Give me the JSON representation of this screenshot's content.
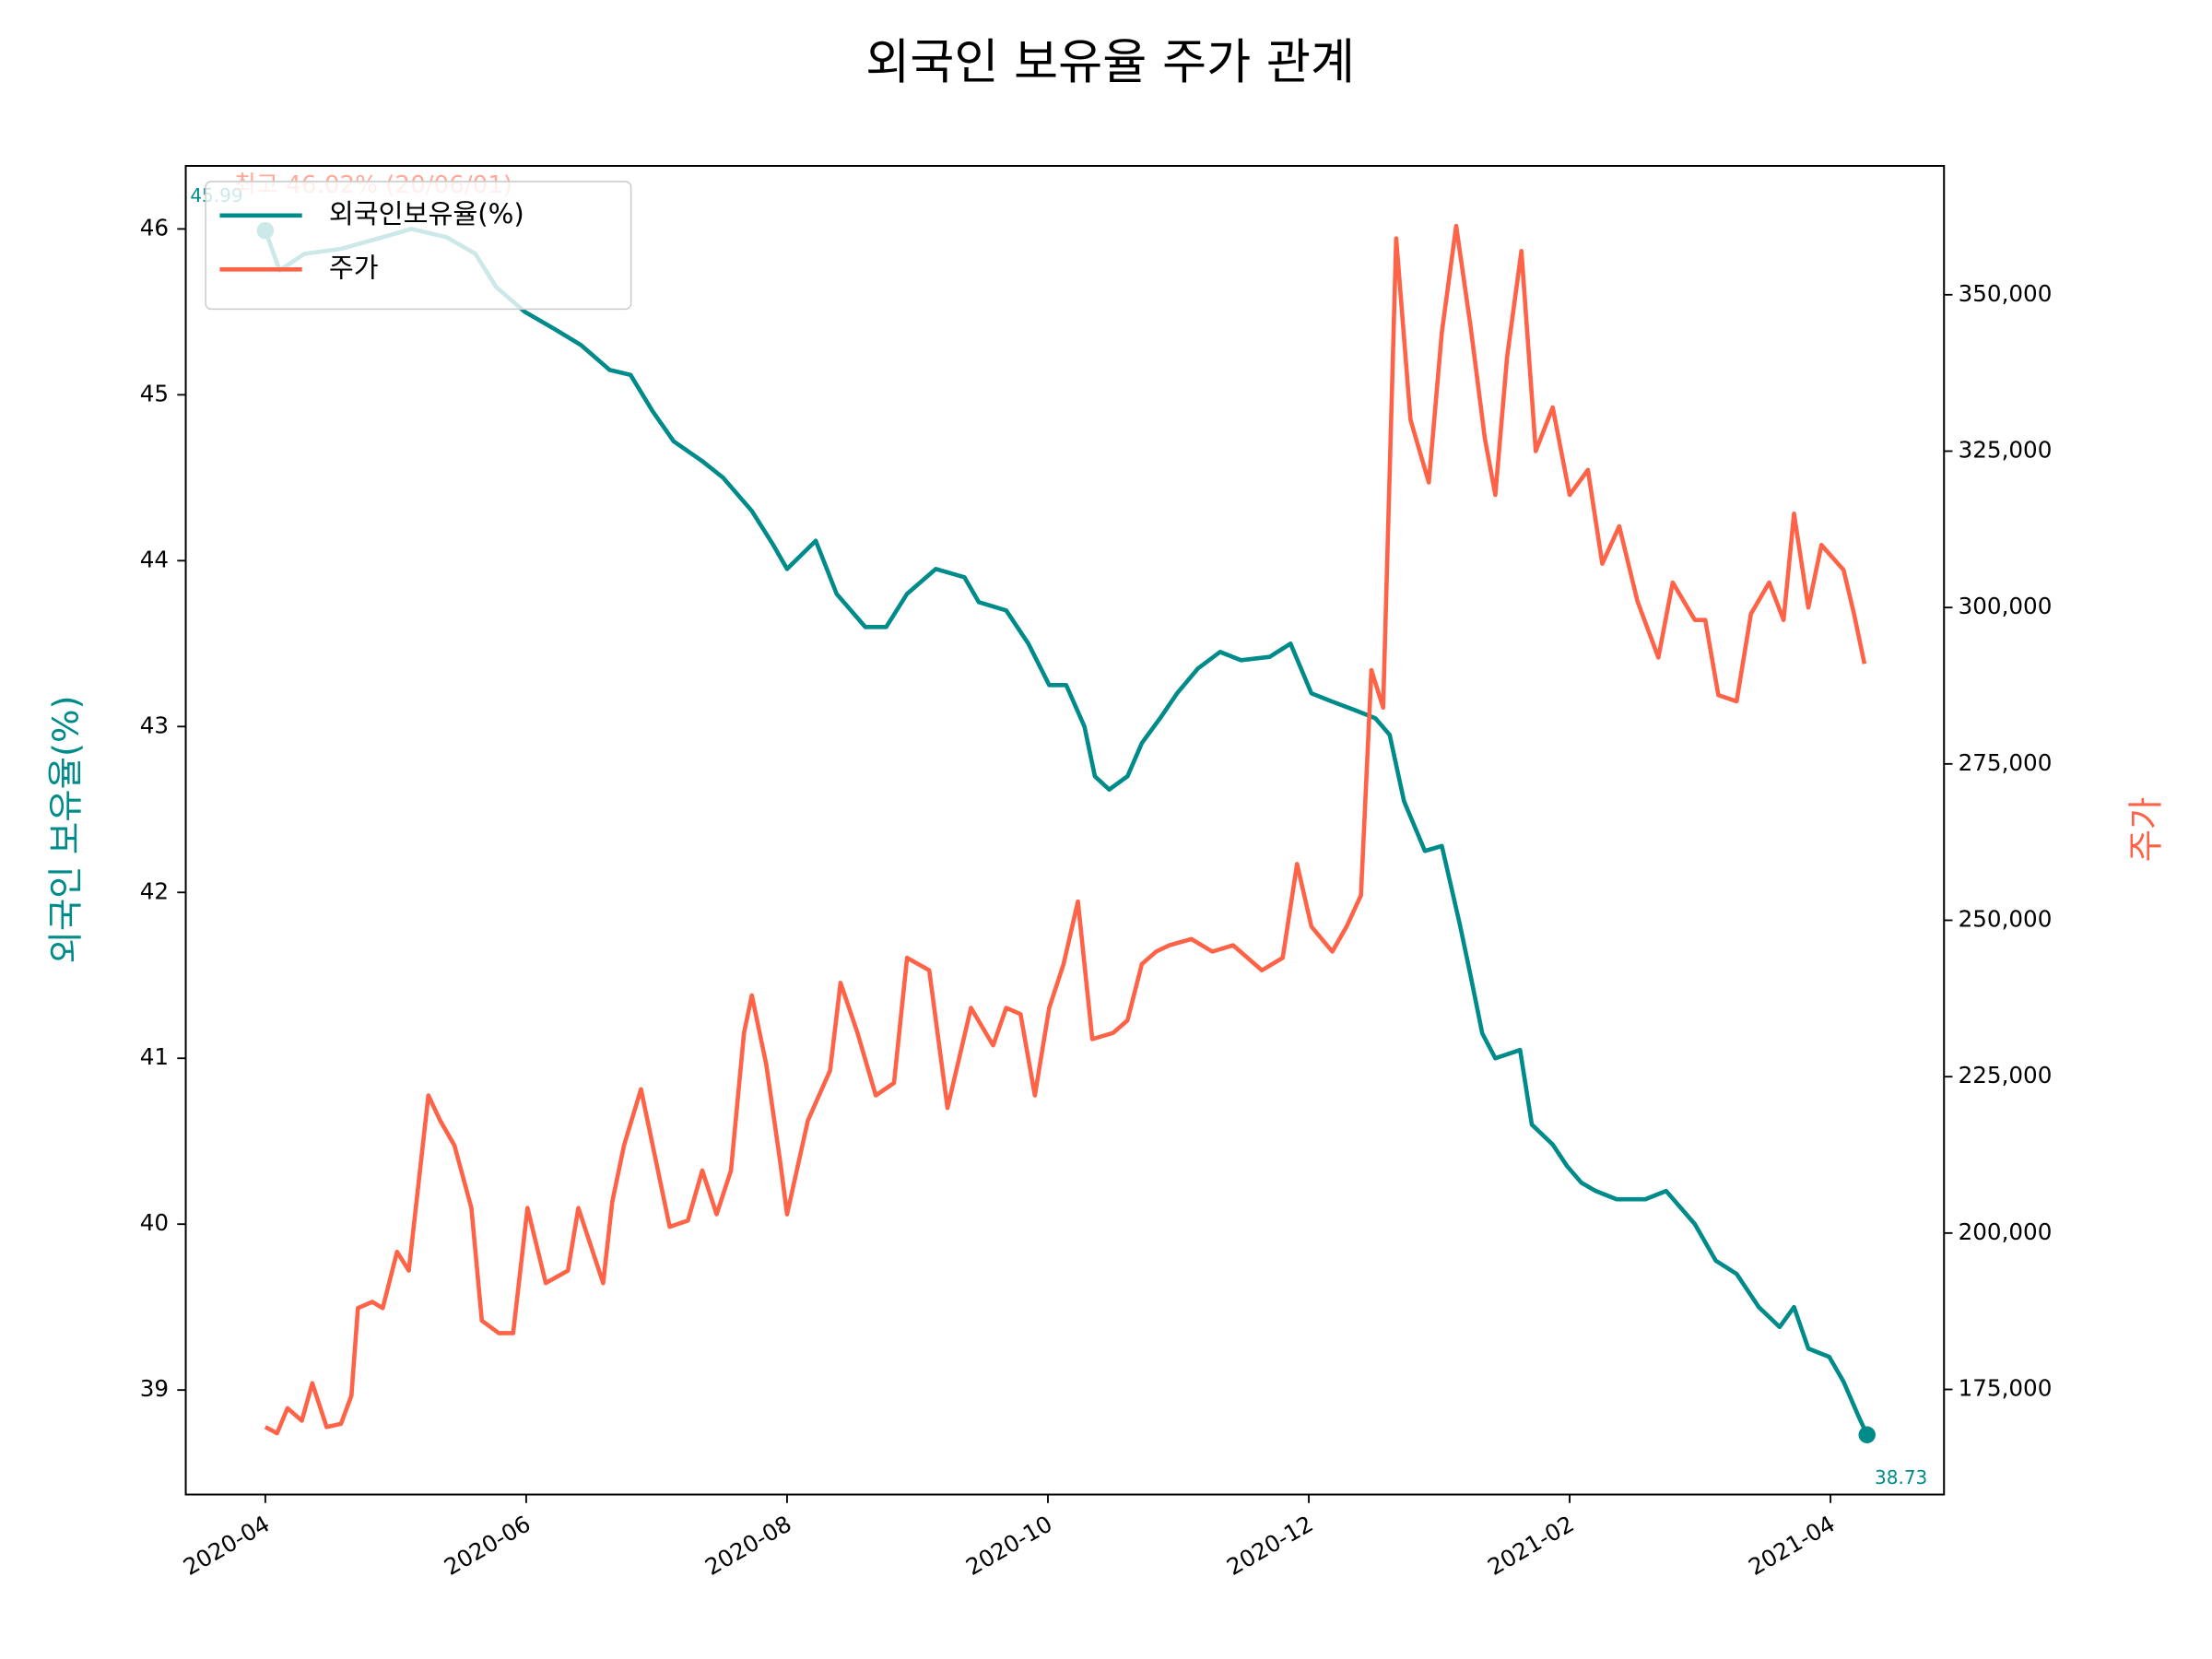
{
  "chart_data": {
    "type": "line",
    "title": "외국인 보유율 주가 관계",
    "ylabel": "외국인 보유율(%)",
    "y2label": "주가",
    "annotation": "최고 46.02% (20/06/01)",
    "legend": "upper left",
    "xlim": [
      -0.61,
      12.87
    ],
    "xticks": [
      {
        "value": 0,
        "label": "2020-04"
      },
      {
        "value": 2,
        "label": "2020-06"
      },
      {
        "value": 4,
        "label": "2020-08"
      },
      {
        "value": 6,
        "label": "2020-10"
      },
      {
        "value": 8,
        "label": "2020-12"
      },
      {
        "value": 10,
        "label": "2021-02"
      },
      {
        "value": 12,
        "label": "2021-04"
      }
    ],
    "ylim": [
      38.37,
      46.38
    ],
    "yticks": [
      39,
      40,
      41,
      42,
      43,
      44,
      45,
      46
    ],
    "y2lim": [
      158200,
      370600
    ],
    "y2ticks": [
      {
        "value": 175000,
        "label": "175,000"
      },
      {
        "value": 200000,
        "label": "200,000"
      },
      {
        "value": 225000,
        "label": "225,000"
      },
      {
        "value": 250000,
        "label": "250,000"
      },
      {
        "value": 275000,
        "label": "275,000"
      },
      {
        "value": 300000,
        "label": "300,000"
      },
      {
        "value": 325000,
        "label": "325,000"
      },
      {
        "value": 350000,
        "label": "350,000"
      }
    ],
    "series": [
      {
        "name": "외국인보유율(%)",
        "color": "#008b8b",
        "x": [
          0,
          0.11,
          0.3,
          0.58,
          0.9,
          1.12,
          1.39,
          1.61,
          1.77,
          1.99,
          2.21,
          2.42,
          2.64,
          2.8,
          2.97,
          3.13,
          3.35,
          3.51,
          3.73,
          3.89,
          4.0,
          4.22,
          4.38,
          4.6,
          4.76,
          4.92,
          5.14,
          5.36,
          5.47,
          5.68,
          5.85,
          6.01,
          6.14,
          6.28,
          6.36,
          6.47,
          6.61,
          6.72,
          6.86,
          6.99,
          7.15,
          7.32,
          7.48,
          7.7,
          7.86,
          8.02,
          8.18,
          8.35,
          8.51,
          8.62,
          8.73,
          8.89,
          9.02,
          9.16,
          9.24,
          9.33,
          9.43,
          9.62,
          9.71,
          9.87,
          9.98,
          10.09,
          10.2,
          10.36,
          10.58,
          10.74,
          10.96,
          11.12,
          11.28,
          11.45,
          11.61,
          11.72,
          11.83,
          11.99,
          12.1,
          12.21,
          12.28
        ],
        "values": [
          45.99,
          45.75,
          45.85,
          45.88,
          45.95,
          46.0,
          45.95,
          45.85,
          45.65,
          45.5,
          45.4,
          45.3,
          45.15,
          45.12,
          44.9,
          44.72,
          44.6,
          44.5,
          44.3,
          44.1,
          43.95,
          44.12,
          43.8,
          43.6,
          43.6,
          43.8,
          43.95,
          43.9,
          43.75,
          43.7,
          43.5,
          43.25,
          43.25,
          43.0,
          42.7,
          42.62,
          42.7,
          42.9,
          43.05,
          43.2,
          43.35,
          43.45,
          43.4,
          43.42,
          43.5,
          43.2,
          43.15,
          43.1,
          43.05,
          42.95,
          42.55,
          42.25,
          42.28,
          41.8,
          41.5,
          41.15,
          41.0,
          41.05,
          40.6,
          40.48,
          40.35,
          40.25,
          40.2,
          40.15,
          40.15,
          40.2,
          40.0,
          39.78,
          39.7,
          39.5,
          39.38,
          39.5,
          39.25,
          39.2,
          39.05,
          38.85,
          38.73
        ],
        "value_labels": [
          "45.99",
          null,
          null,
          null,
          null,
          null,
          null,
          null,
          null,
          null,
          null,
          null,
          null,
          null,
          null,
          null,
          null,
          null,
          null,
          null,
          null,
          null,
          null,
          null,
          null,
          null,
          null,
          null,
          null,
          null,
          null,
          null,
          null,
          null,
          null,
          null,
          null,
          null,
          null,
          null,
          null,
          null,
          null,
          null,
          null,
          null,
          null,
          null,
          null,
          null,
          null,
          null,
          null,
          null,
          null,
          null,
          null,
          null,
          null,
          null,
          null,
          null,
          null,
          null,
          null,
          null,
          null,
          null,
          null,
          null,
          null,
          null,
          null,
          null,
          null,
          null,
          "38.73"
        ]
      },
      {
        "name": "주가",
        "color": "#ff6347",
        "axis": "y2",
        "x": [
          0,
          0.09,
          0.17,
          0.28,
          0.36,
          0.47,
          0.58,
          0.66,
          0.71,
          0.82,
          0.9,
          1.01,
          1.1,
          1.25,
          1.34,
          1.45,
          1.58,
          1.66,
          1.79,
          1.9,
          2.01,
          2.15,
          2.32,
          2.4,
          2.59,
          2.66,
          2.75,
          2.88,
          2.99,
          3.1,
          3.24,
          3.35,
          3.46,
          3.57,
          3.67,
          3.73,
          3.84,
          3.95,
          4.0,
          4.16,
          4.33,
          4.41,
          4.54,
          4.68,
          4.82,
          4.92,
          5.09,
          5.23,
          5.41,
          5.58,
          5.68,
          5.79,
          5.9,
          6.01,
          6.12,
          6.23,
          6.34,
          6.5,
          6.61,
          6.72,
          6.83,
          6.93,
          7.1,
          7.26,
          7.42,
          7.64,
          7.8,
          7.91,
          8.02,
          8.18,
          8.29,
          8.4,
          8.48,
          8.57,
          8.67,
          8.78,
          8.92,
          9.02,
          9.13,
          9.24,
          9.35,
          9.43,
          9.52,
          9.63,
          9.74,
          9.87,
          10.0,
          10.14,
          10.25,
          10.38,
          10.52,
          10.68,
          10.79,
          10.96,
          11.04,
          11.14,
          11.28,
          11.39,
          11.53,
          11.64,
          11.72,
          11.83,
          11.93,
          12.1,
          12.18,
          12.26
        ],
        "values": [
          169000,
          168000,
          172000,
          170000,
          176000,
          169000,
          169500,
          174000,
          188000,
          189000,
          188000,
          197000,
          194000,
          222000,
          218000,
          214000,
          204000,
          186000,
          184000,
          184000,
          204000,
          192000,
          194000,
          204000,
          192000,
          205000,
          214000,
          223000,
          212000,
          201000,
          202000,
          210000,
          203000,
          210000,
          232000,
          238000,
          227000,
          211000,
          203000,
          218000,
          226000,
          240000,
          232000,
          222000,
          224000,
          244000,
          242000,
          220000,
          236000,
          230000,
          236000,
          235000,
          222000,
          236000,
          243000,
          253000,
          231000,
          232000,
          234000,
          243000,
          245000,
          246000,
          247000,
          245000,
          246000,
          242000,
          244000,
          259000,
          249000,
          245000,
          249000,
          254000,
          290000,
          284000,
          359000,
          330000,
          320000,
          344000,
          361000,
          345000,
          327000,
          318000,
          340000,
          357000,
          325000,
          332000,
          318000,
          322000,
          307000,
          313000,
          301000,
          292000,
          304000,
          298000,
          298000,
          286000,
          285000,
          299000,
          304000,
          298000,
          315000,
          300000,
          310000,
          306000,
          299000,
          291000
        ]
      }
    ]
  }
}
